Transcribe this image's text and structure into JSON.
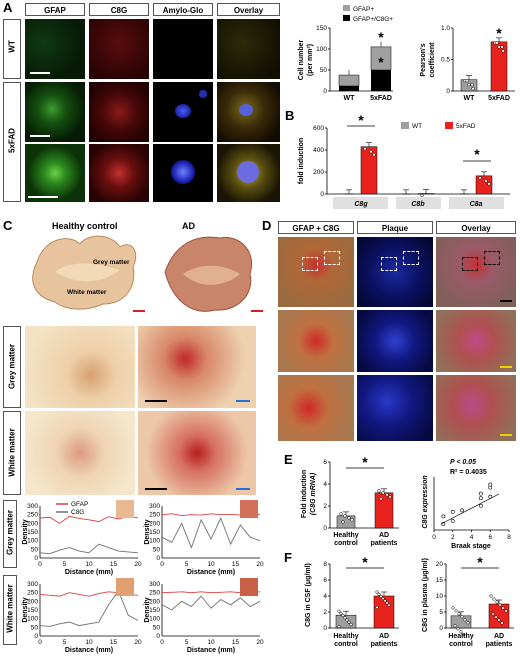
{
  "panel_labels": {
    "a": "A",
    "b": "B",
    "c": "C",
    "d": "D",
    "e": "E",
    "f": "F"
  },
  "colors": {
    "wt": "#9e9e9e",
    "fad": "#e8231e",
    "gfap_red": "#e04040",
    "c8g_gray": "#707070",
    "scalebar_white": "#ffffff",
    "scalebar_red": "#d42020",
    "scalebar_blue": "#2a6fd6",
    "scalebar_yellow": "#f0d000"
  },
  "panel_a": {
    "columns": [
      "GFAP",
      "C8G",
      "Amylo-Glo",
      "Overlay"
    ],
    "rows": {
      "wt": "WT",
      "fad": "5xFAD"
    }
  },
  "panel_c": {
    "col_healthy": "Healthy control",
    "col_ad": "AD",
    "grey_matter": "Grey matter",
    "white_matter": "White matter",
    "row_grey": "Grey matter",
    "row_white": "White matter",
    "legend_gfap": "GFAP",
    "legend_c8g": "C8G",
    "ylabel": "Density",
    "xlabel": "Distance (mm)",
    "yticks": [
      "0",
      "50",
      "100",
      "150",
      "200",
      "250",
      "300"
    ],
    "xticks": [
      "0",
      "5",
      "10",
      "15",
      "20"
    ]
  },
  "panel_d": {
    "columns": [
      "GFAP + C8G",
      "Plaque",
      "Overlay"
    ]
  },
  "chart_data": [
    {
      "type": "bar",
      "id": "A-cell-number",
      "categories": [
        "WT",
        "5xFAD"
      ],
      "series": [
        {
          "name": "GFAP+",
          "values": [
            26,
            55
          ]
        },
        {
          "name": "GFAP+/C8G+",
          "values": [
            12,
            50
          ]
        }
      ],
      "stacked": true,
      "ylabel": "Cell number (per mm²)",
      "ylim": [
        0,
        150
      ],
      "yticks": [
        "0",
        "50",
        "100",
        "150"
      ],
      "legend": [
        "GFAP+",
        "GFAP+/C8G+"
      ],
      "annotations": [
        "*",
        "*"
      ]
    },
    {
      "type": "bar",
      "id": "A-pearson",
      "categories": [
        "WT",
        "5xFAD"
      ],
      "values": [
        0.18,
        0.78
      ],
      "ylabel": "Pearson's coefficient",
      "ylim": [
        0,
        1.0
      ],
      "yticks": [
        "0",
        "0.5",
        "1.0"
      ],
      "annotations": [
        "*"
      ]
    },
    {
      "type": "bar",
      "id": "B-fold-induction",
      "categories": [
        "C8g",
        "C8b",
        "C8a"
      ],
      "series": [
        {
          "name": "WT",
          "values": [
            1,
            1,
            1
          ]
        },
        {
          "name": "5xFAD",
          "values": [
            430,
            4,
            165
          ]
        }
      ],
      "ylabel": "fold induction",
      "ylim": [
        0,
        600
      ],
      "yticks": [
        "0",
        "200",
        "400",
        "600"
      ],
      "legend": [
        "WT",
        "5xFAD"
      ],
      "annotations": [
        "*",
        "*"
      ]
    },
    {
      "type": "bar",
      "id": "E-fold-induction",
      "categories": [
        "Healthy control",
        "AD patients"
      ],
      "values": [
        1.1,
        3.2
      ],
      "ylabel": "Fold induction (C8G mRNA)",
      "ylim": [
        0,
        6
      ],
      "yticks": [
        "0",
        "2",
        "4",
        "6"
      ],
      "annotations": [
        "*"
      ]
    },
    {
      "type": "scatter",
      "id": "E-correlation",
      "x": [
        1,
        1,
        2,
        2,
        3,
        5,
        5,
        5,
        6,
        6,
        6
      ],
      "y": [
        0.4,
        0.9,
        0.6,
        1.2,
        1.3,
        1.6,
        2.1,
        2.4,
        2.2,
        2.8,
        3.0
      ],
      "xlabel": "Braak stage",
      "ylabel": "C8G expression",
      "xlim": [
        0,
        8
      ],
      "xticks": [
        "0",
        "2",
        "4",
        "6",
        "8"
      ],
      "annotations": [
        "P < 0.05",
        "R² = 0.4035"
      ]
    },
    {
      "type": "bar",
      "id": "F-csf",
      "categories": [
        "Healthy control",
        "AD patients"
      ],
      "values": [
        1.6,
        4.0
      ],
      "ylabel": "C8G in CSF (μg/ml)",
      "ylim": [
        0,
        8
      ],
      "yticks": [
        "0",
        "2",
        "4",
        "6",
        "8"
      ],
      "annotations": [
        "*"
      ]
    },
    {
      "type": "bar",
      "id": "F-plasma",
      "categories": [
        "Healthy control",
        "AD patients"
      ],
      "values": [
        3.8,
        7.5
      ],
      "ylabel": "C8G in plasma (μg/ml)",
      "ylim": [
        0,
        20
      ],
      "yticks": [
        "0",
        "5",
        "10",
        "15",
        "20"
      ],
      "annotations": [
        "*"
      ]
    },
    {
      "type": "line",
      "id": "C-densitometry",
      "xlabel": "Distance (mm)",
      "ylabel": "Density",
      "ylim": [
        0,
        300
      ],
      "xlim": [
        0,
        20
      ],
      "legend": [
        "GFAP",
        "C8G"
      ]
    }
  ],
  "labels": {
    "a_cells_wt": "WT",
    "a_cells_fad": "5xFAD",
    "b_legend_wt": "WT",
    "b_legend_fad": "5xFAD",
    "e_hc1": "Healthy",
    "e_hc2": "control",
    "e_ad1": "AD",
    "e_ad2": "patients",
    "e_p": "P < 0.05",
    "e_r": "R² = 0.4035",
    "e_xlab": "Braak stage",
    "e_ylab": "C8G expression",
    "e_ylab1": "Fold induction",
    "e_ylab2": "(C8G mRNA)",
    "f_csf": "C8G in CSF (μg/ml)",
    "f_plasma": "C8G in plasma (μg/ml)",
    "star": "*",
    "a_cn1": "Cell number",
    "a_cn2": "(per mm²)",
    "a_pc1": "Pearson's",
    "a_pc2": "coefficient",
    "a_leg1": "GFAP+",
    "a_leg2": "GFAP+/C8G+",
    "b_ylab": "fold induction",
    "b_c8g": "C8g",
    "b_c8b": "C8b",
    "b_c8a": "C8a"
  }
}
